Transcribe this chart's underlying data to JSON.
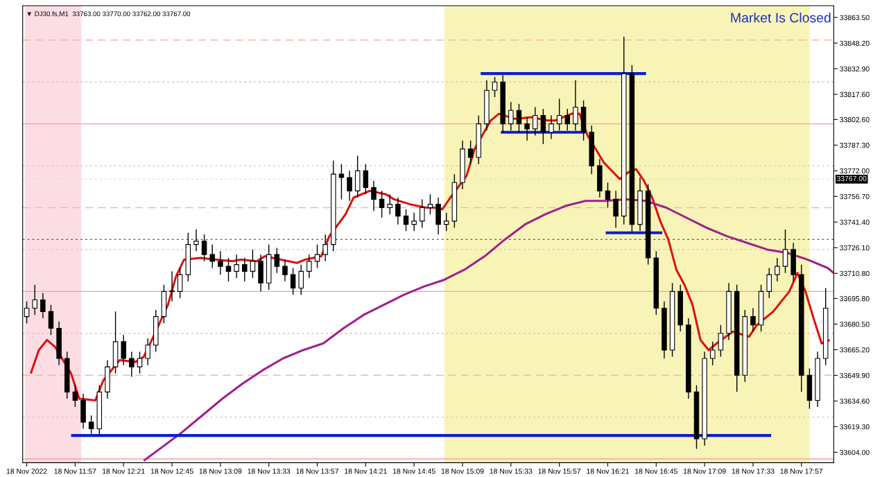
{
  "chart_data": {
    "type": "candlestick",
    "title": "▼ DJ30.fs,M1  33763.00 33770.00 33762.00 33767.00",
    "x": [
      "2022-11-18T11:33",
      "2022-11-18T11:37",
      "2022-11-18T11:41",
      "2022-11-18T11:45",
      "2022-11-18T11:49",
      "2022-11-18T11:53",
      "2022-11-18T11:57",
      "2022-11-18T12:01",
      "2022-11-18T12:05",
      "2022-11-18T12:09",
      "2022-11-18T12:13",
      "2022-11-18T12:17",
      "2022-11-18T12:21",
      "2022-11-18T12:25",
      "2022-11-18T12:29",
      "2022-11-18T12:33",
      "2022-11-18T12:37",
      "2022-11-18T12:41",
      "2022-11-18T12:45",
      "2022-11-18T12:49",
      "2022-11-18T12:53",
      "2022-11-18T12:57",
      "2022-11-18T13:01",
      "2022-11-18T13:05",
      "2022-11-18T13:09",
      "2022-11-18T13:13",
      "2022-11-18T13:17",
      "2022-11-18T13:21",
      "2022-11-18T13:25",
      "2022-11-18T13:29",
      "2022-11-18T13:33",
      "2022-11-18T13:37",
      "2022-11-18T13:41",
      "2022-11-18T13:45",
      "2022-11-18T13:49",
      "2022-11-18T13:53",
      "2022-11-18T13:57",
      "2022-11-18T14:01",
      "2022-11-18T14:05",
      "2022-11-18T14:09",
      "2022-11-18T14:13",
      "2022-11-18T14:17",
      "2022-11-18T14:21",
      "2022-11-18T14:25",
      "2022-11-18T14:29",
      "2022-11-18T14:33",
      "2022-11-18T14:37",
      "2022-11-18T14:41",
      "2022-11-18T14:45",
      "2022-11-18T14:49",
      "2022-11-18T14:53",
      "2022-11-18T14:57",
      "2022-11-18T15:01",
      "2022-11-18T15:05",
      "2022-11-18T15:09",
      "2022-11-18T15:13",
      "2022-11-18T15:17",
      "2022-11-18T15:21",
      "2022-11-18T15:25",
      "2022-11-18T15:29",
      "2022-11-18T15:33",
      "2022-11-18T15:37",
      "2022-11-18T15:41",
      "2022-11-18T15:45",
      "2022-11-18T15:49",
      "2022-11-18T15:53",
      "2022-11-18T15:57",
      "2022-11-18T16:01",
      "2022-11-18T16:05",
      "2022-11-18T16:09",
      "2022-11-18T16:13",
      "2022-11-18T16:17",
      "2022-11-18T16:21",
      "2022-11-18T16:25",
      "2022-11-18T16:29",
      "2022-11-18T16:33",
      "2022-11-18T16:37",
      "2022-11-18T16:41",
      "2022-11-18T16:45",
      "2022-11-18T16:49",
      "2022-11-18T16:53",
      "2022-11-18T16:57",
      "2022-11-18T17:01",
      "2022-11-18T17:05",
      "2022-11-18T17:09",
      "2022-11-18T17:13",
      "2022-11-18T17:17",
      "2022-11-18T17:21",
      "2022-11-18T17:25",
      "2022-11-18T17:29",
      "2022-11-18T17:33",
      "2022-11-18T17:37",
      "2022-11-18T17:41",
      "2022-11-18T17:45",
      "2022-11-18T17:49",
      "2022-11-18T17:53",
      "2022-11-18T17:57",
      "2022-11-18T18:01",
      "2022-11-18T18:05",
      "2022-11-18T18:09"
    ],
    "ohlc": [
      [
        33685,
        33694,
        33681,
        33690
      ],
      [
        33690,
        33704,
        33686,
        33695
      ],
      [
        33695,
        33699,
        33684,
        33688
      ],
      [
        33688,
        33692,
        33674,
        33678
      ],
      [
        33678,
        33682,
        33656,
        33660
      ],
      [
        33660,
        33664,
        33636,
        33640
      ],
      [
        33640,
        33644,
        33631,
        33635
      ],
      [
        33635,
        33639,
        33618,
        33622
      ],
      [
        33622,
        33626,
        33615,
        33618
      ],
      [
        33618,
        33644,
        33614,
        33640
      ],
      [
        33640,
        33659,
        33636,
        33655
      ],
      [
        33655,
        33688,
        33651,
        33670
      ],
      [
        33670,
        33674,
        33656,
        33660
      ],
      [
        33660,
        33664,
        33649,
        33655
      ],
      [
        33655,
        33664,
        33651,
        33660
      ],
      [
        33660,
        33672,
        33656,
        33668
      ],
      [
        33668,
        33689,
        33664,
        33685
      ],
      [
        33685,
        33704,
        33681,
        33700
      ],
      [
        33700,
        33712,
        33694,
        33700
      ],
      [
        33700,
        33714,
        33696,
        33710
      ],
      [
        33710,
        33735,
        33706,
        33728
      ],
      [
        33728,
        33737,
        33724,
        33730
      ],
      [
        33730,
        33734,
        33718,
        33722
      ],
      [
        33722,
        33728,
        33714,
        33718
      ],
      [
        33718,
        33724,
        33710,
        33715
      ],
      [
        33715,
        33720,
        33706,
        33712
      ],
      [
        33712,
        33722,
        33708,
        33716
      ],
      [
        33716,
        33720,
        33706,
        33712
      ],
      [
        33712,
        33725,
        33708,
        33718
      ],
      [
        33718,
        33722,
        33700,
        33705
      ],
      [
        33705,
        33728,
        33701,
        33722
      ],
      [
        33722,
        33726,
        33711,
        33715
      ],
      [
        33715,
        33719,
        33706,
        33710
      ],
      [
        33710,
        33714,
        33698,
        33702
      ],
      [
        33702,
        33716,
        33698,
        33712
      ],
      [
        33712,
        33722,
        33708,
        33718
      ],
      [
        33718,
        33728,
        33714,
        33722
      ],
      [
        33722,
        33734,
        33718,
        33728
      ],
      [
        33728,
        33778,
        33724,
        33770
      ],
      [
        33770,
        33776,
        33755,
        33768
      ],
      [
        33768,
        33772,
        33754,
        33760
      ],
      [
        33760,
        33781,
        33756,
        33772
      ],
      [
        33772,
        33776,
        33758,
        33762
      ],
      [
        33762,
        33766,
        33748,
        33755
      ],
      [
        33755,
        33760,
        33744,
        33750
      ],
      [
        33750,
        33758,
        33746,
        33752
      ],
      [
        33752,
        33756,
        33740,
        33745
      ],
      [
        33745,
        33749,
        33736,
        33740
      ],
      [
        33740,
        33747,
        33736,
        33742
      ],
      [
        33742,
        33755,
        33738,
        33750
      ],
      [
        33750,
        33758,
        33746,
        33752
      ],
      [
        33752,
        33756,
        33734,
        33740
      ],
      [
        33740,
        33747,
        33736,
        33742
      ],
      [
        33742,
        33770,
        33738,
        33765
      ],
      [
        33765,
        33790,
        33761,
        33785
      ],
      [
        33785,
        33790,
        33776,
        33780
      ],
      [
        33780,
        33805,
        33776,
        33800
      ],
      [
        33800,
        33826,
        33796,
        33820
      ],
      [
        33820,
        33828,
        33816,
        33825
      ],
      [
        33825,
        33829,
        33795,
        33800
      ],
      [
        33800,
        33813,
        33796,
        33808
      ],
      [
        33808,
        33812,
        33795,
        33800
      ],
      [
        33800,
        33804,
        33790,
        33797
      ],
      [
        33797,
        33810,
        33793,
        33805
      ],
      [
        33805,
        33809,
        33788,
        33795
      ],
      [
        33795,
        33805,
        33791,
        33800
      ],
      [
        33800,
        33815,
        33796,
        33805
      ],
      [
        33805,
        33809,
        33796,
        33800
      ],
      [
        33800,
        33826,
        33796,
        33810
      ],
      [
        33810,
        33814,
        33790,
        33795
      ],
      [
        33795,
        33799,
        33770,
        33775
      ],
      [
        33775,
        33779,
        33756,
        33760
      ],
      [
        33760,
        33765,
        33750,
        33755
      ],
      [
        33755,
        33760,
        33738,
        33745
      ],
      [
        33745,
        33852,
        33740,
        33830
      ],
      [
        33830,
        33835,
        33735,
        33740
      ],
      [
        33740,
        33768,
        33736,
        33760
      ],
      [
        33760,
        33764,
        33716,
        33720
      ],
      [
        33720,
        33724,
        33686,
        33690
      ],
      [
        33690,
        33694,
        33660,
        33665
      ],
      [
        33665,
        33705,
        33661,
        33700
      ],
      [
        33700,
        33704,
        33676,
        33680
      ],
      [
        33680,
        33684,
        33636,
        33640
      ],
      [
        33640,
        33644,
        33606,
        33612
      ],
      [
        33612,
        33664,
        33608,
        33660
      ],
      [
        33660,
        33670,
        33656,
        33665
      ],
      [
        33665,
        33680,
        33661,
        33675
      ],
      [
        33675,
        33705,
        33671,
        33700
      ],
      [
        33700,
        33704,
        33640,
        33650
      ],
      [
        33650,
        33689,
        33646,
        33685
      ],
      [
        33685,
        33690,
        33676,
        33680
      ],
      [
        33680,
        33704,
        33676,
        33700
      ],
      [
        33700,
        33714,
        33696,
        33710
      ],
      [
        33710,
        33720,
        33706,
        33715
      ],
      [
        33715,
        33737,
        33711,
        33725
      ],
      [
        33725,
        33729,
        33706,
        33710
      ],
      [
        33710,
        33716,
        33640,
        33650
      ],
      [
        33650,
        33654,
        33630,
        33635
      ],
      [
        33635,
        33664,
        33631,
        33660
      ],
      [
        33660,
        33702,
        33656,
        33690
      ]
    ],
    "series": [
      {
        "type": "line",
        "color": "#dd1111",
        "x": [
          "2022-11-18T11:35",
          "2022-11-18T11:39",
          "2022-11-18T11:43",
          "2022-11-18T11:47",
          "2022-11-18T11:55",
          "2022-11-18T11:59",
          "2022-11-18T12:07",
          "2022-11-18T12:11",
          "2022-11-18T12:19",
          "2022-11-18T12:27",
          "2022-11-18T12:31",
          "2022-11-18T12:35",
          "2022-11-18T12:43",
          "2022-11-18T12:47",
          "2022-11-18T12:51",
          "2022-11-18T12:59",
          "2022-11-18T13:07",
          "2022-11-18T13:15",
          "2022-11-18T13:19",
          "2022-11-18T13:27",
          "2022-11-18T13:31",
          "2022-11-18T13:39",
          "2022-11-18T13:47",
          "2022-11-18T13:51",
          "2022-11-18T13:59",
          "2022-11-18T14:03",
          "2022-11-18T14:11",
          "2022-11-18T14:15",
          "2022-11-18T14:23",
          "2022-11-18T14:31",
          "2022-11-18T14:35",
          "2022-11-18T14:43",
          "2022-11-18T14:51",
          "2022-11-18T14:55",
          "2022-11-18T14:59",
          "2022-11-18T15:03",
          "2022-11-18T15:11",
          "2022-11-18T15:15",
          "2022-11-18T15:23",
          "2022-11-18T15:27",
          "2022-11-18T15:35",
          "2022-11-18T15:43",
          "2022-11-18T15:51",
          "2022-11-18T15:55",
          "2022-11-18T16:03",
          "2022-11-18T16:07",
          "2022-11-18T16:11",
          "2022-11-18T16:19",
          "2022-11-18T16:27",
          "2022-11-18T16:31",
          "2022-11-18T16:35",
          "2022-11-18T16:39",
          "2022-11-18T16:43",
          "2022-11-18T16:47",
          "2022-11-18T16:51",
          "2022-11-18T16:55",
          "2022-11-18T16:59",
          "2022-11-18T17:03",
          "2022-11-18T17:07",
          "2022-11-18T17:11",
          "2022-11-18T17:15",
          "2022-11-18T17:23",
          "2022-11-18T17:31",
          "2022-11-18T17:35",
          "2022-11-18T17:43",
          "2022-11-18T17:51",
          "2022-11-18T17:55",
          "2022-11-18T17:59",
          "2022-11-18T18:03",
          "2022-11-18T18:07",
          "2022-11-18T18:11"
        ],
        "values": [
          33651,
          33665,
          33671,
          33667,
          33651,
          33636,
          33635,
          33647,
          33659,
          33658,
          33661,
          33671,
          33692,
          33709,
          33719,
          33720,
          33719,
          33718,
          33719,
          33718,
          33721,
          33719,
          33717,
          33719,
          33721,
          33733,
          33746,
          33756,
          33760,
          33758,
          33755,
          33752,
          33750,
          33750,
          33749,
          33756,
          33769,
          33785,
          33802,
          33806,
          33803,
          33804,
          33802,
          33802,
          33806,
          33806,
          33793,
          33777,
          33767,
          33771,
          33773,
          33766,
          33756,
          33742,
          33731,
          33713,
          33704,
          33692,
          33671,
          33665,
          33669,
          33676,
          33673,
          33680,
          33688,
          33700,
          33711,
          33700,
          33684,
          33669,
          33671
        ]
      },
      {
        "type": "line",
        "color": "#a0208a",
        "x": [
          "2022-11-18T12:31",
          "2022-11-18T12:40",
          "2022-11-18T12:50",
          "2022-11-18T13:00",
          "2022-11-18T13:10",
          "2022-11-18T13:20",
          "2022-11-18T13:30",
          "2022-11-18T13:40",
          "2022-11-18T13:50",
          "2022-11-18T14:00",
          "2022-11-18T14:10",
          "2022-11-18T14:20",
          "2022-11-18T14:30",
          "2022-11-18T14:40",
          "2022-11-18T14:50",
          "2022-11-18T15:00",
          "2022-11-18T15:10",
          "2022-11-18T15:20",
          "2022-11-18T15:30",
          "2022-11-18T15:40",
          "2022-11-18T15:50",
          "2022-11-18T16:00",
          "2022-11-18T16:10",
          "2022-11-18T16:20",
          "2022-11-18T16:30",
          "2022-11-18T16:40",
          "2022-11-18T16:50",
          "2022-11-18T17:00",
          "2022-11-18T17:10",
          "2022-11-18T17:20",
          "2022-11-18T17:30",
          "2022-11-18T17:40",
          "2022-11-18T17:50",
          "2022-11-18T18:00",
          "2022-11-18T18:10",
          "2022-11-18T18:13"
        ],
        "values": [
          33599,
          33607,
          33616,
          33626,
          33636,
          33645,
          33653,
          33660,
          33665,
          33669,
          33678,
          33686,
          33692,
          33698,
          33703,
          33707,
          33713,
          33721,
          33731,
          33740,
          33746,
          33751,
          33754,
          33754,
          33755,
          33754,
          33750,
          33744,
          33738,
          33733,
          33729,
          33725,
          33723,
          33719,
          33714,
          33711
        ]
      },
      {
        "type": "line",
        "color": "#0a1fd0",
        "x": [
          "2022-11-18T15:18",
          "2022-11-18T16:40"
        ],
        "values": [
          33830,
          33830
        ]
      },
      {
        "type": "line",
        "color": "#0a1fd0",
        "x": [
          "2022-11-18T15:28",
          "2022-11-18T16:10"
        ],
        "values": [
          33795,
          33795
        ]
      },
      {
        "type": "line",
        "color": "#0a1fd0",
        "x": [
          "2022-11-18T16:20",
          "2022-11-18T16:48"
        ],
        "values": [
          33735,
          33735
        ]
      },
      {
        "type": "line",
        "color": "#0a1fd0",
        "x": [
          "2022-11-18T11:55",
          "2022-11-18T17:42"
        ],
        "values": [
          33614,
          33614
        ]
      }
    ],
    "xlim": [
      "2022-11-18T11:31",
      "2022-11-18T18:13"
    ],
    "xticks": [
      {
        "value": "2022-11-18T11:33",
        "label": "18 Nov 2022"
      },
      {
        "value": "2022-11-18T11:57",
        "label": "18 Nov 11:57"
      },
      {
        "value": "2022-11-18T12:21",
        "label": "18 Nov 12:21"
      },
      {
        "value": "2022-11-18T12:45",
        "label": "18 Nov 12:45"
      },
      {
        "value": "2022-11-18T13:09",
        "label": "18 Nov 13:09"
      },
      {
        "value": "2022-11-18T13:33",
        "label": "18 Nov 13:33"
      },
      {
        "value": "2022-11-18T13:57",
        "label": "18 Nov 13:57"
      },
      {
        "value": "2022-11-18T14:21",
        "label": "18 Nov 14:21"
      },
      {
        "value": "2022-11-18T14:45",
        "label": "18 Nov 14:45"
      },
      {
        "value": "2022-11-18T15:09",
        "label": "18 Nov 15:09"
      },
      {
        "value": "2022-11-18T15:33",
        "label": "18 Nov 15:33"
      },
      {
        "value": "2022-11-18T15:57",
        "label": "18 Nov 15:57"
      },
      {
        "value": "2022-11-18T16:21",
        "label": "18 Nov 16:21"
      },
      {
        "value": "2022-11-18T16:45",
        "label": "18 Nov 16:45"
      },
      {
        "value": "2022-11-18T17:09",
        "label": "18 Nov 17:09"
      },
      {
        "value": "2022-11-18T17:33",
        "label": "18 Nov 17:33"
      },
      {
        "value": "2022-11-18T17:57",
        "label": "18 Nov 17:57"
      }
    ],
    "ylim": [
      33597.8,
      33870.5
    ],
    "yticks": [
      {
        "value": 33604,
        "label": "33604.00"
      },
      {
        "value": 33619.3,
        "label": "33619.30"
      },
      {
        "value": 33634.6,
        "label": "33634.60"
      },
      {
        "value": 33649.9,
        "label": "33649.90"
      },
      {
        "value": 33665.2,
        "label": "33665.20"
      },
      {
        "value": 33680.5,
        "label": "33680.50"
      },
      {
        "value": 33695.8,
        "label": "33695.80"
      },
      {
        "value": 33710.8,
        "label": "33710.80"
      },
      {
        "value": 33726.1,
        "label": "33726.10"
      },
      {
        "value": 33741.4,
        "label": "33741.40"
      },
      {
        "value": 33756.7,
        "label": "33756.70"
      },
      {
        "value": 33772,
        "label": "33772.00"
      },
      {
        "value": 33787.3,
        "label": "33787.30"
      },
      {
        "value": 33802.6,
        "label": "33802.60"
      },
      {
        "value": 33817.6,
        "label": "33817.60"
      },
      {
        "value": 33832.9,
        "label": "33832.90"
      },
      {
        "value": 33848.2,
        "label": "33848.20"
      },
      {
        "value": 33863.5,
        "label": "33863.50"
      }
    ],
    "ref_lines": [
      {
        "axis": "y",
        "value": 33850,
        "color": "#f0b8a8",
        "line_style": "dashed"
      },
      {
        "axis": "y",
        "value": 33825,
        "color": "#e8b8a8",
        "line_style": "dotted"
      },
      {
        "axis": "y",
        "value": 33800,
        "color": "#f4a0a0",
        "line_style": "solid"
      },
      {
        "axis": "y",
        "value": 33775,
        "color": "#e8b8a8",
        "line_style": "dotted"
      },
      {
        "axis": "y",
        "value": 33750,
        "color": "#f0b8a8",
        "line_style": "dashed"
      },
      {
        "axis": "y",
        "value": 33731,
        "color": "#555566",
        "line_style": "dotted"
      },
      {
        "axis": "y",
        "value": 33725,
        "color": "#e8b8a8",
        "line_style": "dotted"
      },
      {
        "axis": "y",
        "value": 33700,
        "color": "#f4a0a0",
        "line_style": "solid"
      },
      {
        "axis": "y",
        "value": 33675,
        "color": "#e8b8a8",
        "line_style": "dotted"
      },
      {
        "axis": "y",
        "value": 33650,
        "color": "#f0b8a8",
        "line_style": "dashed"
      },
      {
        "axis": "y",
        "value": 33625,
        "color": "#e8b8a8",
        "line_style": "dotted"
      },
      {
        "axis": "y",
        "value": 33600,
        "color": "#f4a0a0",
        "line_style": "solid"
      },
      {
        "axis": "y",
        "value": 33767,
        "label": "33767.00",
        "color": "#d8d8d8",
        "line_style": "dotted"
      }
    ],
    "bands": [
      {
        "axis": "x",
        "from": "2022-11-18T11:32",
        "to": "2022-11-18T12:00",
        "color": "#fddde4"
      },
      {
        "axis": "x",
        "from": "2022-11-18T15:00",
        "to": "2022-11-18T18:01",
        "color": "#f8f4b8"
      }
    ],
    "annotations": [
      "Market Is Closed"
    ],
    "grid": false
  }
}
